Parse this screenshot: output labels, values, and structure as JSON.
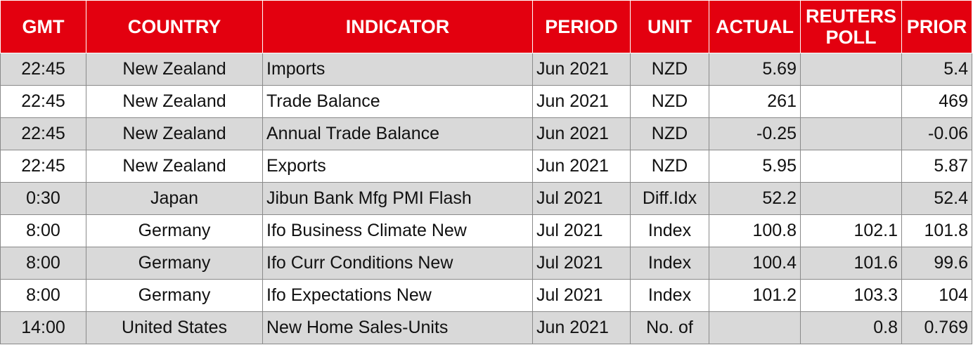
{
  "headers": {
    "gmt": "GMT",
    "country": "COUNTRY",
    "indicator": "INDICATOR",
    "period": "PERIOD",
    "unit": "UNIT",
    "actual": "ACTUAL",
    "poll_line1": "REUTERS",
    "poll_line2": "POLL",
    "prior": "PRIOR"
  },
  "rows": [
    {
      "gmt": "22:45",
      "country": "New Zealand",
      "indicator": "Imports",
      "period": "Jun 2021",
      "unit": "NZD",
      "actual": "5.69",
      "poll": "",
      "prior": "5.4"
    },
    {
      "gmt": "22:45",
      "country": "New Zealand",
      "indicator": "Trade Balance",
      "period": "Jun 2021",
      "unit": "NZD",
      "actual": "261",
      "poll": "",
      "prior": "469"
    },
    {
      "gmt": "22:45",
      "country": "New Zealand",
      "indicator": "Annual Trade Balance",
      "period": "Jun 2021",
      "unit": "NZD",
      "actual": "-0.25",
      "poll": "",
      "prior": "-0.06"
    },
    {
      "gmt": "22:45",
      "country": "New Zealand",
      "indicator": "Exports",
      "period": "Jun 2021",
      "unit": "NZD",
      "actual": "5.95",
      "poll": "",
      "prior": "5.87"
    },
    {
      "gmt": "0:30",
      "country": "Japan",
      "indicator": "Jibun Bank Mfg PMI Flash",
      "period": "Jul 2021",
      "unit": "Diff.Idx",
      "actual": "52.2",
      "poll": "",
      "prior": "52.4"
    },
    {
      "gmt": "8:00",
      "country": "Germany",
      "indicator": "Ifo Business Climate New",
      "period": "Jul 2021",
      "unit": "Index",
      "actual": "100.8",
      "poll": "102.1",
      "prior": "101.8"
    },
    {
      "gmt": "8:00",
      "country": "Germany",
      "indicator": "Ifo Curr Conditions New",
      "period": "Jul 2021",
      "unit": "Index",
      "actual": "100.4",
      "poll": "101.6",
      "prior": "99.6"
    },
    {
      "gmt": "8:00",
      "country": "Germany",
      "indicator": "Ifo Expectations New",
      "period": "Jul 2021",
      "unit": "Index",
      "actual": "101.2",
      "poll": "103.3",
      "prior": "104"
    },
    {
      "gmt": "14:00",
      "country": "United States",
      "indicator": "New Home Sales-Units",
      "period": "Jun 2021",
      "unit": "No. of",
      "actual": "",
      "poll": "0.8",
      "prior": "0.769"
    }
  ],
  "colors": {
    "header_bg": "#e3000f",
    "header_text": "#ffffff",
    "shaded_row": "#d9d9d9",
    "plain_row": "#ffffff"
  }
}
